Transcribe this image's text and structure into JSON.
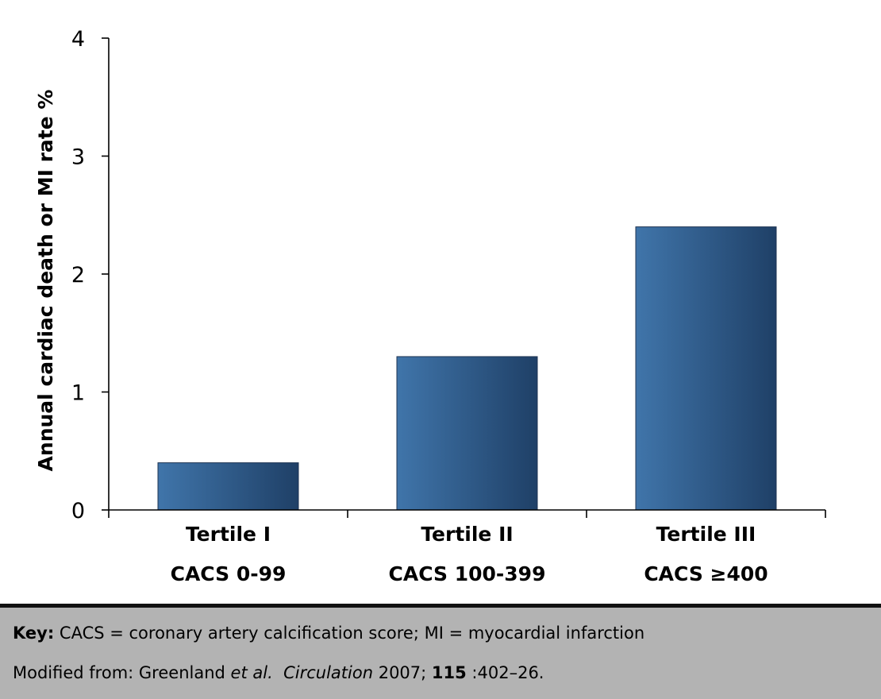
{
  "chart_data": {
    "type": "bar",
    "categories": [
      "Tertile I",
      "Tertile II",
      "Tertile III"
    ],
    "subcategories": [
      "CACS 0-99",
      "CACS 100-399",
      "CACS ≥400"
    ],
    "values": [
      0.4,
      1.3,
      2.4
    ],
    "title": "",
    "xlabel": "",
    "ylabel": "Annual cardiac death or MI rate %",
    "ylim": [
      0,
      4
    ],
    "yticks": [
      "0",
      "1",
      "2",
      "3",
      "4"
    ],
    "grid": false,
    "legend": "none",
    "colors": {
      "bar_light": "#4075aa",
      "bar_dark": "#1f4067",
      "axis": "#000000"
    }
  },
  "footer": {
    "key_label": "Key:",
    "key_text": " CACS = coronary artery calcification score; MI = myocardial infarction",
    "source_prefix": "Modified from: Greenland ",
    "source_authors_italic": "et al.",
    "source_journal_italic": "Circulation",
    "source_year": " 2007; ",
    "source_volume": "115",
    "source_pages": " :402–26.",
    "background_color": "#b3b3b3"
  }
}
